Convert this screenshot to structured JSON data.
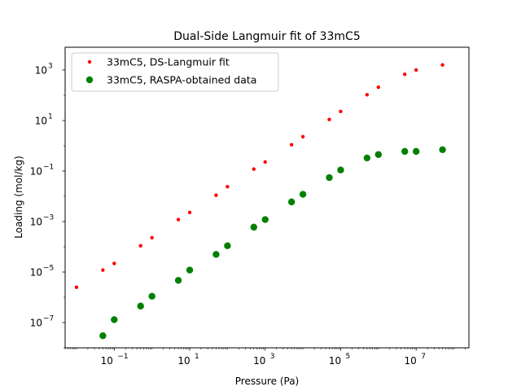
{
  "chart_data": {
    "type": "scatter",
    "title": "Dual-Side Langmuir fit of 33mC5",
    "xlabel": "Pressure (Pa)",
    "ylabel": "Loading (mol/kg)",
    "xscale": "log",
    "yscale": "log",
    "xlim": [
      0.005,
      250000000
    ],
    "ylim": [
      1e-08,
      8000
    ],
    "xticks": [
      {
        "value": 0.1,
        "base": "10",
        "exp": "−1"
      },
      {
        "value": 10,
        "base": "10",
        "exp": "1"
      },
      {
        "value": 1000,
        "base": "10",
        "exp": "3"
      },
      {
        "value": 100000,
        "base": "10",
        "exp": "5"
      },
      {
        "value": 10000000,
        "base": "10",
        "exp": "7"
      }
    ],
    "yticks": [
      {
        "value": 1e-07,
        "base": "10",
        "exp": "−7"
      },
      {
        "value": 1e-05,
        "base": "10",
        "exp": "−5"
      },
      {
        "value": 0.001,
        "base": "10",
        "exp": "−3"
      },
      {
        "value": 0.1,
        "base": "10",
        "exp": "−1"
      },
      {
        "value": 10,
        "base": "10",
        "exp": "1"
      },
      {
        "value": 1000,
        "base": "10",
        "exp": "3"
      }
    ],
    "grid": false,
    "legend_position": "upper-left",
    "series": [
      {
        "name": "33mC5, DS-Langmuir fit",
        "color": "#ff0000",
        "marker": "small-dot",
        "x": [
          0.01,
          0.05,
          0.1,
          0.5,
          1,
          5,
          10,
          50,
          100,
          500,
          1000,
          5000,
          10000,
          50000,
          100000,
          500000,
          1000000,
          5000000,
          10000000,
          50000000
        ],
        "y": [
          2.5e-06,
          1.2e-05,
          2.2e-05,
          0.00011,
          0.00023,
          0.0012,
          0.0023,
          0.011,
          0.024,
          0.12,
          0.23,
          1.1,
          2.3,
          11,
          23,
          105,
          210,
          680,
          1000,
          1600
        ]
      },
      {
        "name": "33mC5, RASPA-obtained data",
        "color": "#008000",
        "marker": "large-dot",
        "x": [
          0.05,
          0.1,
          0.5,
          1,
          5,
          10,
          50,
          100,
          500,
          1000,
          5000,
          10000,
          50000,
          100000,
          500000,
          1000000,
          5000000,
          10000000,
          50000000
        ],
        "y": [
          3e-08,
          1.3e-07,
          4.5e-07,
          1.1e-06,
          4.7e-06,
          1.2e-05,
          5e-05,
          0.00011,
          0.0006,
          0.0012,
          0.006,
          0.012,
          0.055,
          0.11,
          0.33,
          0.45,
          0.6,
          0.6,
          0.7
        ]
      }
    ]
  }
}
